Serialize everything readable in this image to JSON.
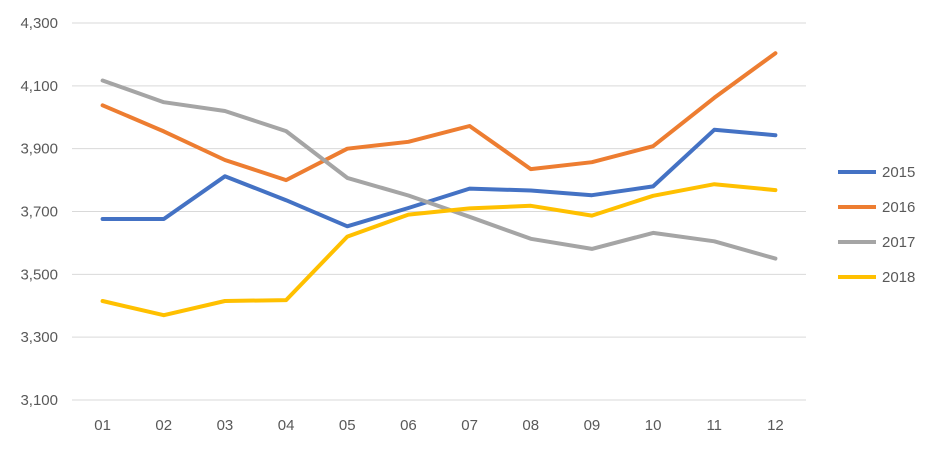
{
  "chart_data": {
    "type": "line",
    "title": "",
    "xlabel": "",
    "ylabel": "",
    "categories": [
      "01",
      "02",
      "03",
      "04",
      "05",
      "06",
      "07",
      "08",
      "09",
      "10",
      "11",
      "12"
    ],
    "ylim": [
      3100,
      4300
    ],
    "yticks": [
      3100,
      3300,
      3500,
      3700,
      3900,
      4100,
      4300
    ],
    "ytick_labels": [
      "3,100",
      "3,300",
      "3,500",
      "3,700",
      "3,900",
      "4,100",
      "4,300"
    ],
    "grid": true,
    "legend_position": "right",
    "series": [
      {
        "name": "2015",
        "color": "#4472c4",
        "values": [
          3676,
          3676,
          3812,
          3736,
          3653,
          3711,
          3773,
          3767,
          3752,
          3780,
          3960,
          3943
        ]
      },
      {
        "name": "2016",
        "color": "#ed7d31",
        "values": [
          4038,
          3955,
          3864,
          3800,
          3900,
          3922,
          3972,
          3835,
          3857,
          3908,
          4062,
          4204
        ]
      },
      {
        "name": "2017",
        "color": "#a5a5a5",
        "values": [
          4117,
          4048,
          4020,
          3956,
          3807,
          3751,
          3683,
          3613,
          3581,
          3632,
          3605,
          3550
        ]
      },
      {
        "name": "2018",
        "color": "#ffc000",
        "values": [
          3415,
          3370,
          3415,
          3418,
          3620,
          3690,
          3710,
          3718,
          3687,
          3750,
          3787,
          3768
        ]
      }
    ]
  }
}
